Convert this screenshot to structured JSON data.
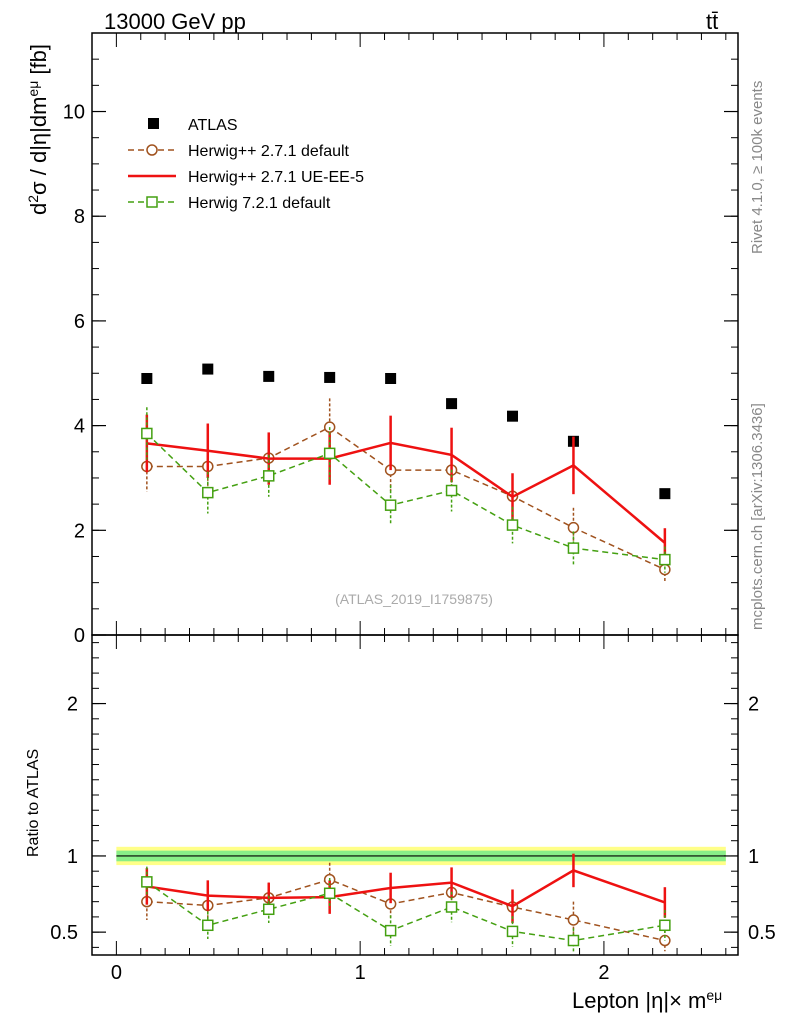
{
  "header": {
    "energy_label": "13000 GeV pp",
    "process_label": "tt̄"
  },
  "side_labels": {
    "rivet": "Rivet 4.1.0, ≥ 100k events",
    "mcplots": "mcplots.cern.ch [arXiv:1306.3436]"
  },
  "watermark": "(ATLAS_2019_I1759875)",
  "main_ylabel": "d²σ / d|η|dm^eμ [fb]",
  "ratio_ylabel": "Ratio to ATLAS",
  "xlabel": "Lepton |η|× m^eμ",
  "colors": {
    "atlas": "#000000",
    "herwig_default": "#a0521e",
    "herwig_ueee5": "#ee1111",
    "herwig7": "#44a011",
    "band_outer": "#ffff88",
    "band_inner": "#88ee88"
  },
  "chart_data": [
    {
      "type": "scatter",
      "panel": "main",
      "xlim": [
        -0.1,
        2.55
      ],
      "ylim": [
        0,
        11.5
      ],
      "yticks": [
        0,
        2,
        4,
        6,
        8,
        10
      ],
      "xticks": [
        0,
        1,
        2
      ],
      "ylabel": "d²σ / d|η|dm^eμ [fb]",
      "x": [
        0.125,
        0.375,
        0.625,
        0.875,
        1.125,
        1.375,
        1.625,
        1.875,
        2.25
      ],
      "series": [
        {
          "name": "ATLAS",
          "style": "marker-square",
          "values": [
            4.9,
            5.08,
            4.94,
            4.92,
            4.9,
            4.42,
            4.18,
            3.7,
            2.7
          ]
        },
        {
          "name": "Herwig++ 2.7.1 default",
          "style": "dashed-circle",
          "values": [
            3.22,
            3.22,
            3.38,
            3.97,
            3.15,
            3.15,
            2.65,
            2.05,
            1.25
          ],
          "err": [
            0.48,
            0.45,
            0.45,
            0.55,
            0.4,
            0.4,
            0.42,
            0.38,
            0.22
          ]
        },
        {
          "name": "Herwig++ 2.7.1 UE-EE-5",
          "style": "solid-line",
          "values": [
            3.66,
            3.52,
            3.37,
            3.37,
            3.67,
            3.44,
            2.64,
            3.24,
            1.76
          ],
          "err": [
            0.55,
            0.52,
            0.5,
            0.5,
            0.52,
            0.52,
            0.45,
            0.55,
            0.28
          ]
        },
        {
          "name": "Herwig 7.2.1 default",
          "style": "dashed-square",
          "values": [
            3.85,
            2.72,
            3.04,
            3.47,
            2.48,
            2.76,
            2.1,
            1.66,
            1.44
          ],
          "err": [
            0.5,
            0.4,
            0.4,
            0.5,
            0.38,
            0.4,
            0.35,
            0.32,
            0.25
          ]
        }
      ],
      "legend": [
        "ATLAS",
        "Herwig++ 2.7.1 default",
        "Herwig++ 2.7.1 UE-EE-5",
        "Herwig 7.2.1 default"
      ],
      "legend_position": "top-left"
    },
    {
      "type": "line",
      "panel": "ratio",
      "xlim": [
        -0.1,
        2.55
      ],
      "ylim": [
        0.35,
        2.45
      ],
      "yticks": [
        0.5,
        1,
        2
      ],
      "ytick_labels": [
        "0.5",
        "1",
        "2"
      ],
      "xticks": [
        0,
        1,
        2
      ],
      "xlabel": "Lepton |η|× m^eμ",
      "ylabel": "Ratio to ATLAS",
      "x": [
        0.125,
        0.375,
        0.625,
        0.875,
        1.125,
        1.375,
        1.625,
        1.875,
        2.25
      ],
      "reference_band": {
        "outer": 0.06,
        "inner": 0.035
      },
      "series": [
        {
          "name": "Herwig++ 2.7.1 default",
          "style": "dashed-circle",
          "values": [
            0.7,
            0.675,
            0.725,
            0.845,
            0.685,
            0.76,
            0.665,
            0.58,
            0.445
          ],
          "err": [
            0.12,
            0.1,
            0.1,
            0.11,
            0.09,
            0.1,
            0.11,
            0.12,
            0.07
          ]
        },
        {
          "name": "Herwig++ 2.7.1 UE-EE-5",
          "style": "solid-line",
          "values": [
            0.8,
            0.74,
            0.725,
            0.73,
            0.79,
            0.825,
            0.67,
            0.905,
            0.695
          ],
          "err": [
            0.12,
            0.1,
            0.1,
            0.11,
            0.1,
            0.1,
            0.11,
            0.11,
            0.1
          ]
        },
        {
          "name": "Herwig 7.2.1 default",
          "style": "dashed-square",
          "values": [
            0.83,
            0.545,
            0.65,
            0.755,
            0.51,
            0.665,
            0.505,
            0.445,
            0.545
          ],
          "err": [
            0.1,
            0.09,
            0.09,
            0.1,
            0.1,
            0.1,
            0.1,
            0.08,
            0.1
          ]
        }
      ]
    }
  ]
}
